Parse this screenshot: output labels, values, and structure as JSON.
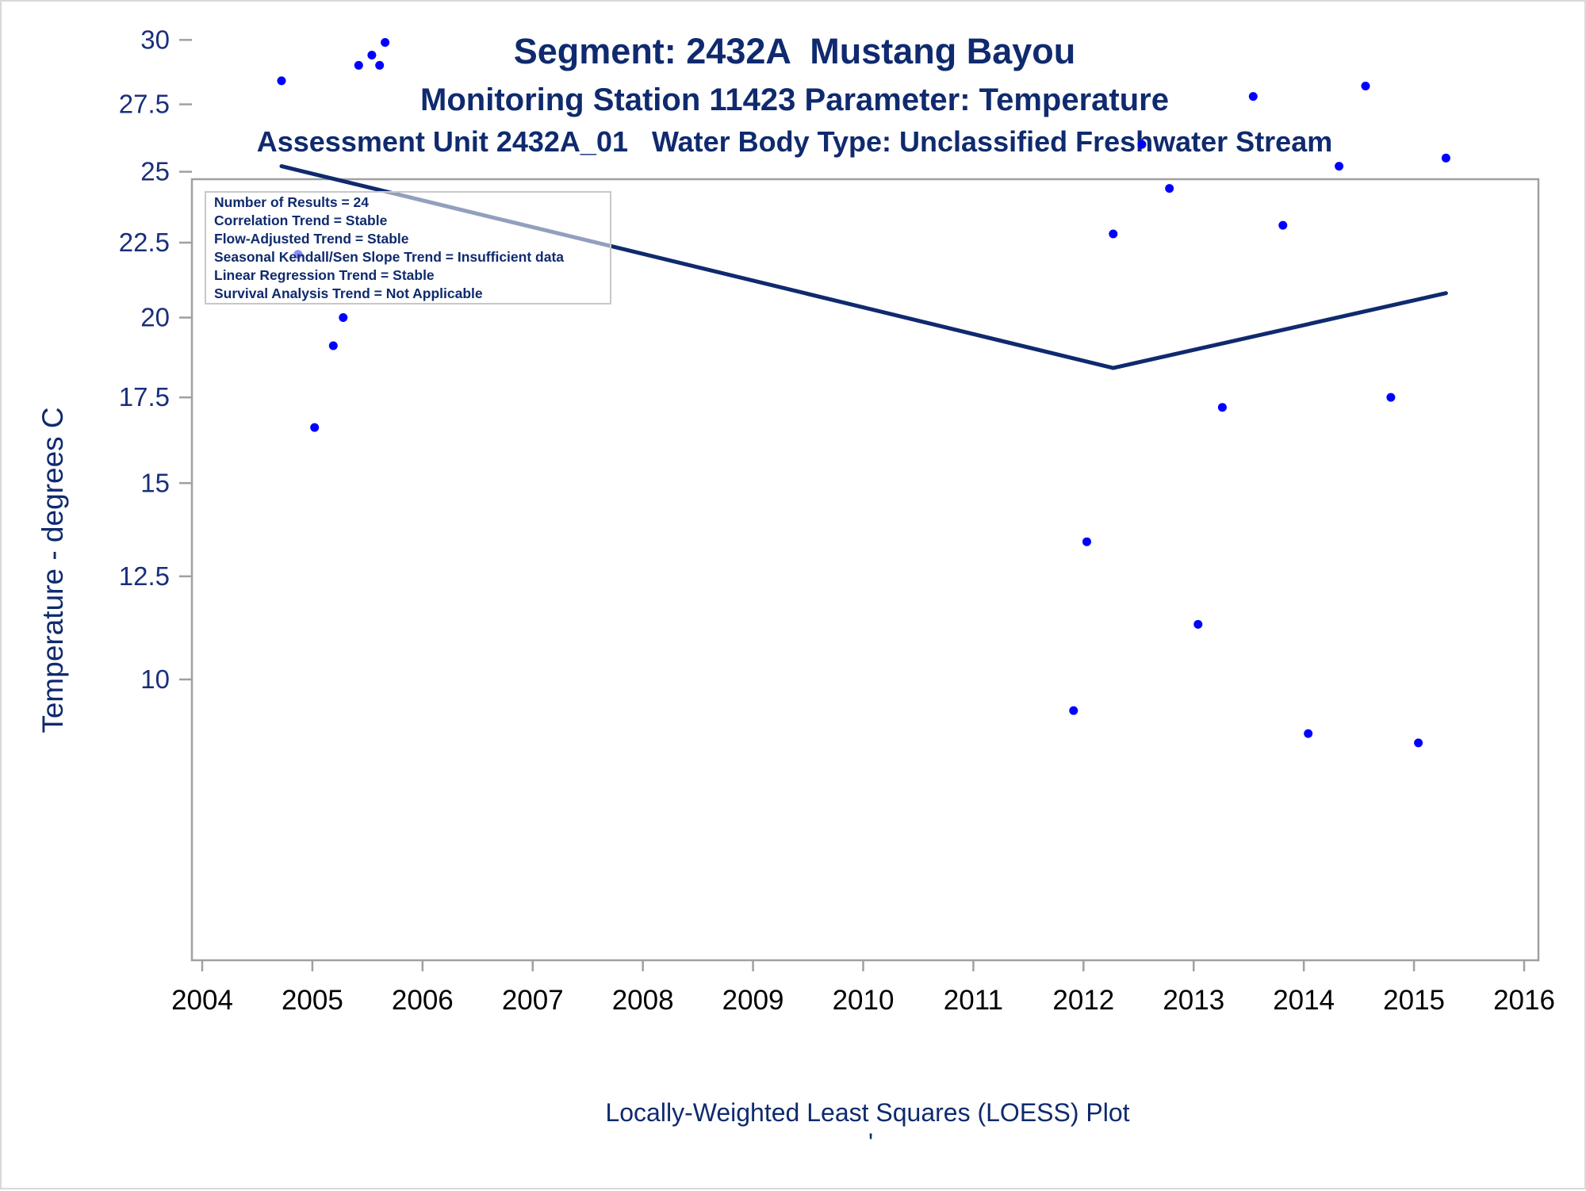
{
  "chart_data": {
    "type": "scatter",
    "title": "Segment: 2432A  Mustang Bayou",
    "subtitle": "Monitoring Station 11423 Parameter: Temperature",
    "subtitle2": "Assessment Unit 2432A_01   Water Body Type: Unclassified Freshwater Stream",
    "xlabel": "",
    "ylabel": "Temperature - degrees C",
    "footnote": "Locally-Weighted Least Squares (LOESS) Plot",
    "footnote_mark": "'",
    "x_ticks": [
      "2004",
      "2005",
      "2006",
      "2007",
      "2008",
      "2009",
      "2010",
      "2011",
      "2012",
      "2013",
      "2014",
      "2015",
      "2016"
    ],
    "y_ticks": [
      "10",
      "12.5",
      "15",
      "17.5",
      "20",
      "22.5",
      "25",
      "27.5",
      "30"
    ],
    "xlim": [
      2004,
      2016
    ],
    "ylim": [
      8.4,
      30.2
    ],
    "y_scale": "sqrt",
    "legend_lines": [
      "Number of Results = 24",
      "Correlation Trend = Stable",
      "Flow-Adjusted Trend = Stable",
      "Seasonal Kendall/Sen Slope Trend = Insufficient data",
      "Linear Regression Trend = Stable",
      "Survival Analysis Trend = Not Applicable"
    ],
    "legend_position": "top-left",
    "colors": {
      "points": "#0000ff",
      "loess_line": "#0f2a6e",
      "text": "#0f2a6e",
      "frame": "#a0a0a0"
    },
    "series": [
      {
        "kind": "points",
        "x": [
          2004.72,
          2004.87,
          2005.02,
          2005.19,
          2005.28,
          2005.42,
          2005.54,
          2005.61,
          2005.66,
          2011.91,
          2012.03,
          2012.27,
          2012.53,
          2012.78,
          2013.04,
          2013.26,
          2013.54,
          2013.81,
          2014.04,
          2014.32,
          2014.56,
          2014.79,
          2015.04,
          2015.29
        ],
        "y": [
          28.4,
          22.1,
          16.6,
          19.1,
          20.0,
          29.0,
          29.4,
          29.0,
          29.9,
          9.3,
          13.4,
          22.8,
          26.0,
          24.4,
          11.3,
          17.2,
          27.8,
          23.1,
          8.8,
          25.2,
          28.2,
          17.5,
          8.6,
          25.5
        ]
      },
      {
        "kind": "loess_line",
        "x": [
          2004.72,
          2012.27,
          2015.29
        ],
        "y": [
          25.2,
          18.4,
          20.8
        ]
      }
    ]
  }
}
